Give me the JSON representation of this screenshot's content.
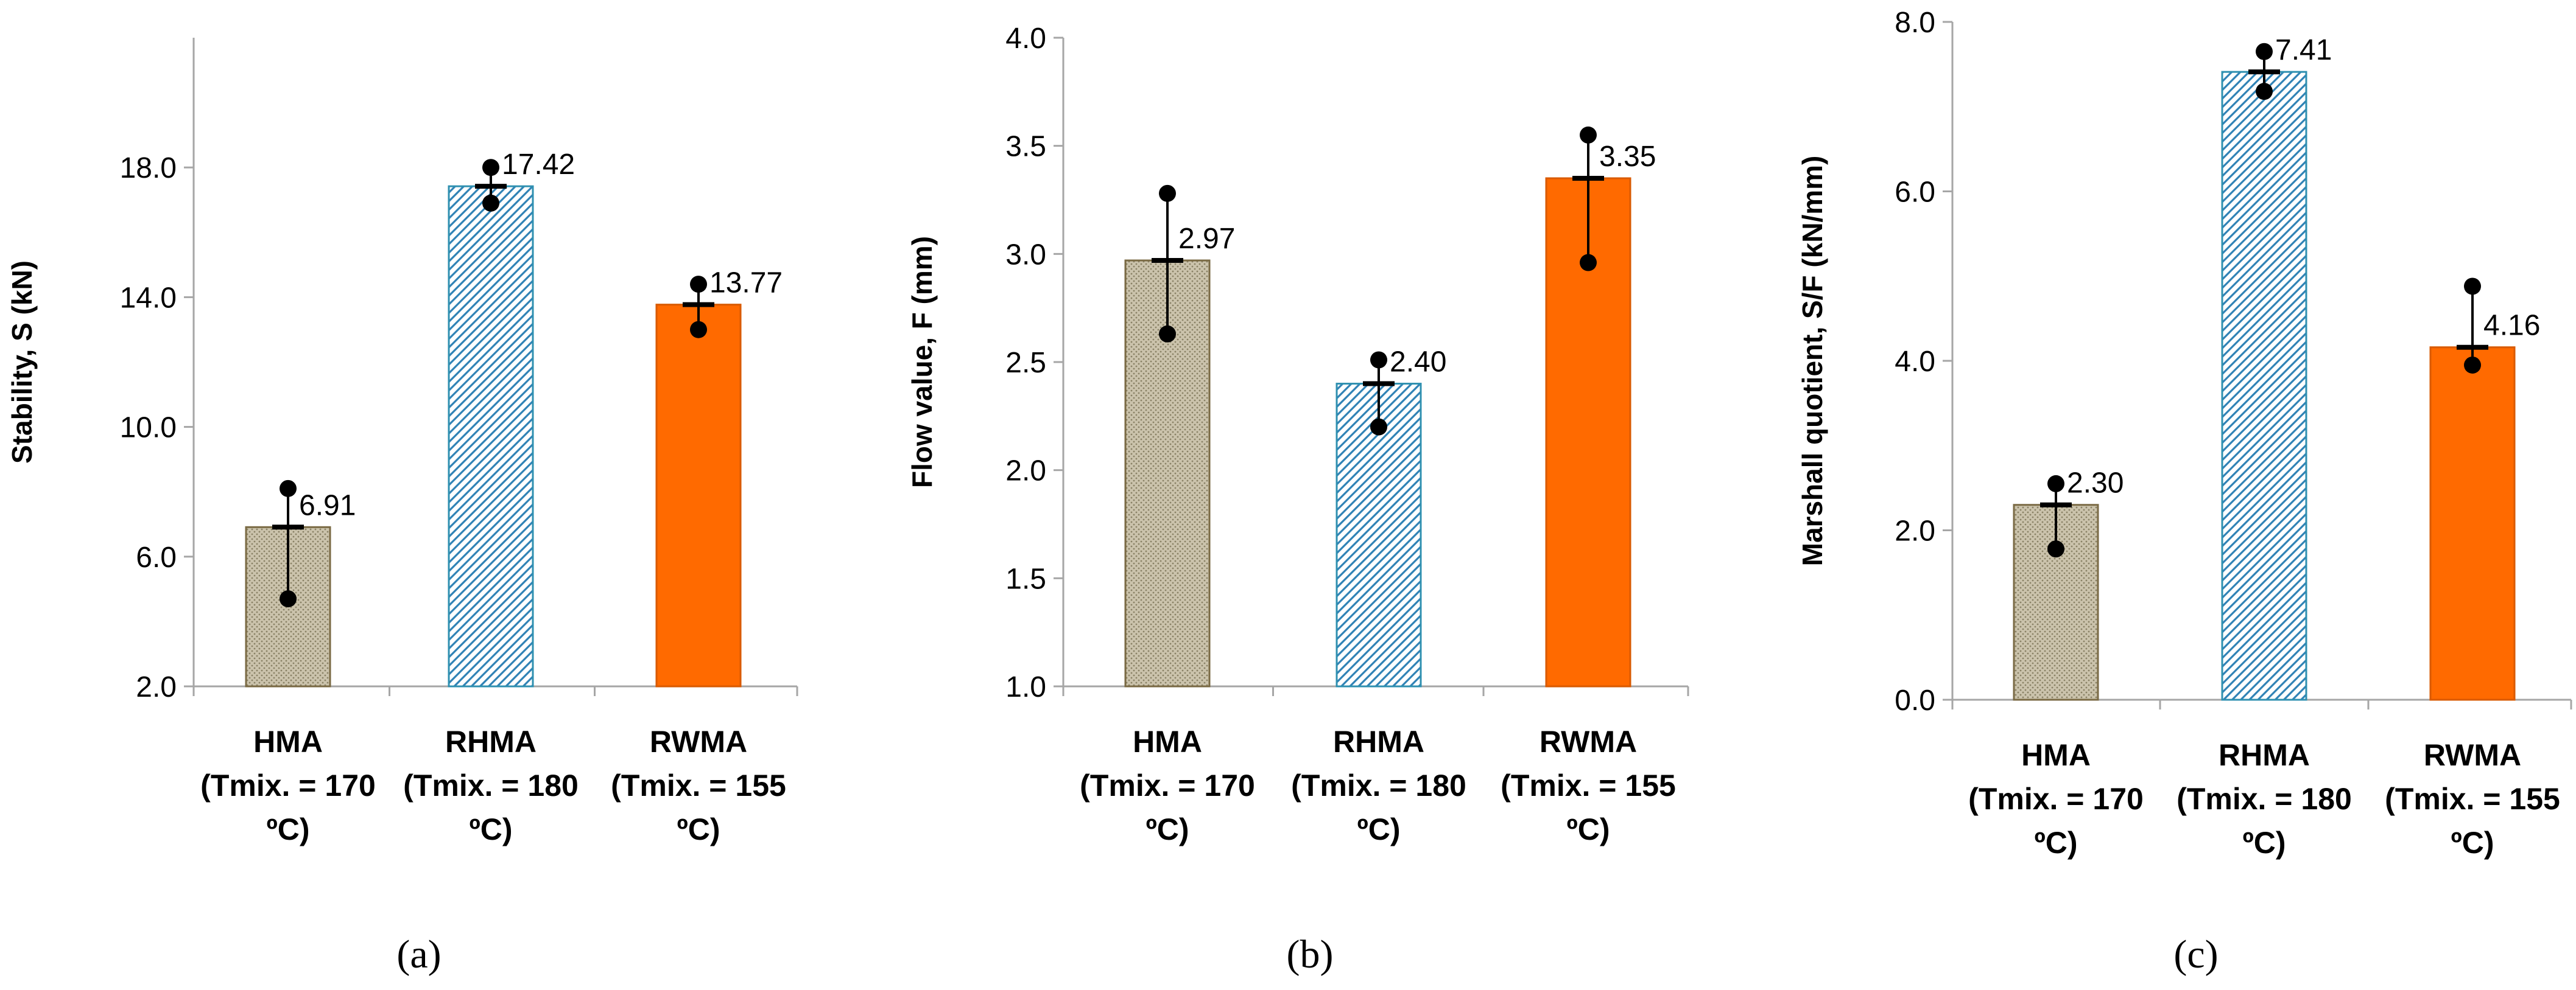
{
  "chart_data": [
    {
      "type": "bar",
      "panel_label": "(a)",
      "ylabel": "Stability, S (kN)",
      "ylim": [
        2.0,
        22.0
      ],
      "yticks": [
        2.0,
        6.0,
        10.0,
        14.0,
        18.0
      ],
      "ytick_labels": [
        "2.0",
        "6.0",
        "10.0",
        "14.0",
        "18.0"
      ],
      "categories": [
        [
          "HMA",
          "(Tmix. = 170",
          "ºC)"
        ],
        [
          "RHMA",
          "(Tmix. = 180",
          "ºC)"
        ],
        [
          "RWMA",
          "(Tmix. = 155",
          "ºC)"
        ]
      ],
      "values": [
        6.91,
        17.42,
        13.77
      ],
      "value_labels": [
        "6.91",
        "17.42",
        "13.77"
      ],
      "error_max": [
        8.1,
        18.0,
        14.4
      ],
      "error_min": [
        4.7,
        16.9,
        13.0
      ],
      "styles": [
        "dotted-khaki",
        "hatched-blue",
        "solid-orange"
      ]
    },
    {
      "type": "bar",
      "panel_label": "(b)",
      "ylabel": "Flow value, F (mm)",
      "ylim": [
        1.0,
        4.0
      ],
      "yticks": [
        1.0,
        1.5,
        2.0,
        2.5,
        3.0,
        3.5,
        4.0
      ],
      "ytick_labels": [
        "1.0",
        "1.5",
        "2.0",
        "2.5",
        "3.0",
        "3.5",
        "4.0"
      ],
      "categories": [
        [
          "HMA",
          "(Tmix. = 170",
          "ºC)"
        ],
        [
          "RHMA",
          "(Tmix. = 180",
          "ºC)"
        ],
        [
          "RWMA",
          "(Tmix. = 155",
          "ºC)"
        ]
      ],
      "values": [
        2.97,
        2.4,
        3.35
      ],
      "value_labels": [
        "2.97",
        "2.40",
        "3.35"
      ],
      "error_max": [
        3.28,
        2.51,
        3.55
      ],
      "error_min": [
        2.63,
        2.2,
        2.96
      ],
      "styles": [
        "dotted-khaki",
        "hatched-blue",
        "solid-orange"
      ]
    },
    {
      "type": "bar",
      "panel_label": "(c)",
      "ylabel": "Marshall quotient, S/F (kN/mm)",
      "ylim": [
        0.0,
        8.0
      ],
      "yticks": [
        0.0,
        2.0,
        4.0,
        6.0,
        8.0
      ],
      "ytick_labels": [
        "0.0",
        "2.0",
        "4.0",
        "6.0",
        "8.0"
      ],
      "categories": [
        [
          "HMA",
          "(Tmix. = 170",
          "ºC)"
        ],
        [
          "RHMA",
          "(Tmix. = 180",
          "ºC)"
        ],
        [
          "RWMA",
          "(Tmix. = 155",
          "ºC)"
        ]
      ],
      "values": [
        2.3,
        7.41,
        4.16
      ],
      "value_labels": [
        "2.30",
        "7.41",
        "4.16"
      ],
      "error_max": [
        2.55,
        7.65,
        4.88
      ],
      "error_min": [
        1.78,
        7.18,
        3.95
      ],
      "styles": [
        "dotted-khaki",
        "hatched-blue",
        "solid-orange"
      ]
    }
  ],
  "colors": {
    "khaki_fill": "#cbc3ac",
    "khaki_dot": "#8a8266",
    "khaki_border": "#7a6a44",
    "blue_hatch": "#2f82b5",
    "blue_border": "#2f90b0",
    "orange_fill": "#ff6a00",
    "orange_border": "#d95a00"
  }
}
